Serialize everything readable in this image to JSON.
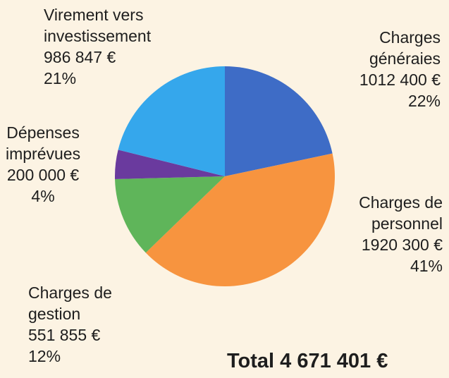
{
  "chart_data": {
    "type": "pie",
    "categories": [
      "Charges\ngénéraies",
      "Charges de\npersonnel",
      "Charges de\ngestion",
      "Dépenses\nimprévues",
      "Virement vers\ninvestissement"
    ],
    "values": [
      1012400,
      1920300,
      551855,
      200000,
      986847
    ],
    "value_labels": [
      "1012 400 €",
      "1920 300 €",
      "551 855 €",
      "200 000 €",
      "986 847 €"
    ],
    "percent_labels": [
      "22%",
      "41%",
      "12%",
      "4%",
      "21%"
    ],
    "colors": [
      "#3e6cc6",
      "#f7943f",
      "#5fb55a",
      "#6a3a9e",
      "#35a7ec"
    ],
    "total": "Total 4 671 401 €"
  }
}
